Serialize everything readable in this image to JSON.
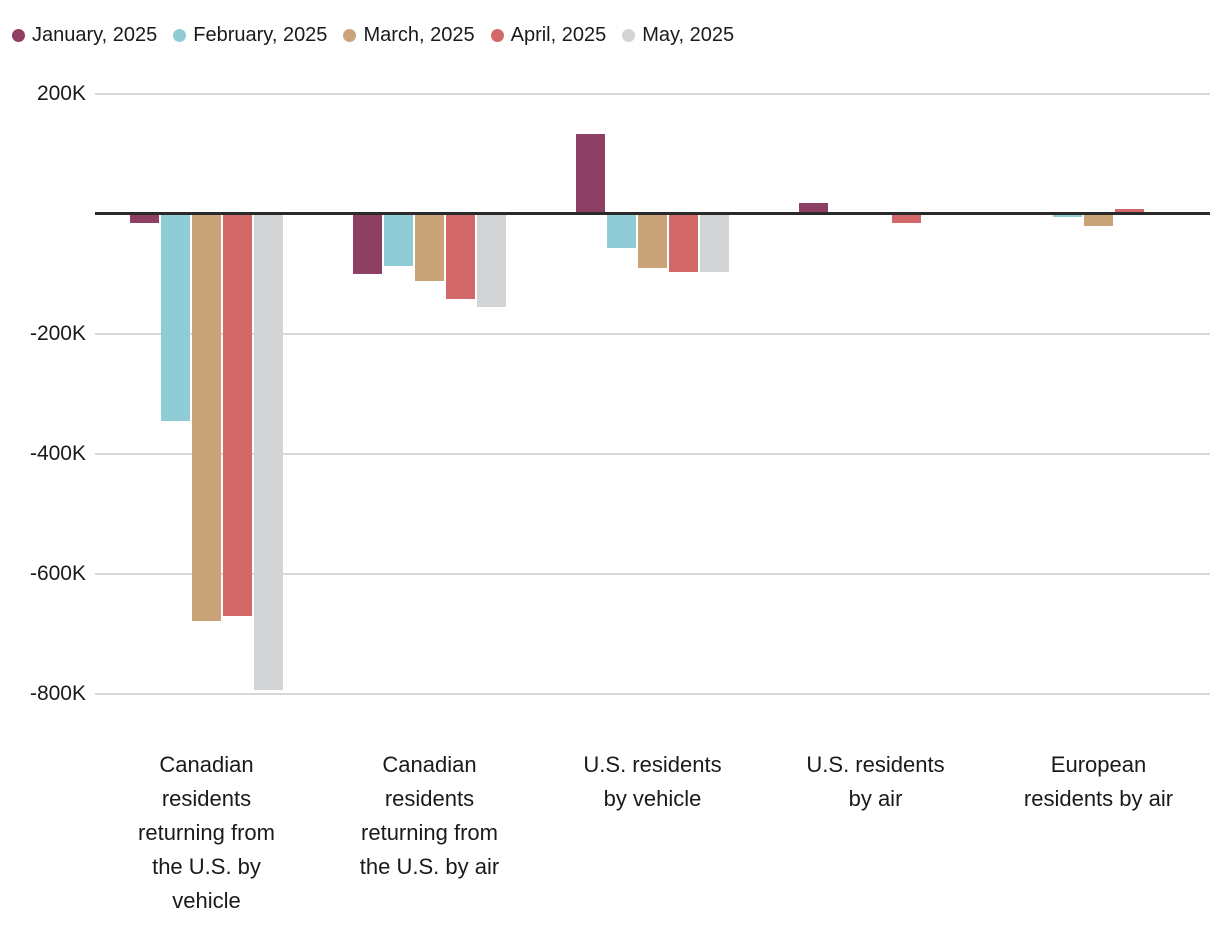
{
  "chart_data": {
    "type": "bar",
    "title": "",
    "xlabel": "",
    "ylabel": "",
    "ylim": [
      -800000,
      200000
    ],
    "grid": true,
    "legend_position": "top-left",
    "yticks": [
      {
        "label": "200K",
        "value": 200000
      },
      {
        "label": "",
        "value": 0
      },
      {
        "label": "-200K",
        "value": -200000
      },
      {
        "label": "-400K",
        "value": -400000
      },
      {
        "label": "-600K",
        "value": -600000
      },
      {
        "label": "-800K",
        "value": -800000
      }
    ],
    "categories": [
      "Canadian residents returning from the U.S. by vehicle",
      "Canadian residents returning from the U.S. by air",
      "U.S. residents by vehicle",
      "U.S. residents by air",
      "European residents by air"
    ],
    "category_line_breaks": [
      [
        "Canadian",
        "residents",
        "returning from",
        "the U.S. by",
        "vehicle"
      ],
      [
        "Canadian",
        "residents",
        "returning from",
        "the U.S. by air"
      ],
      [
        "U.S. residents",
        "by vehicle"
      ],
      [
        "U.S. residents",
        "by air"
      ],
      [
        "European",
        "residents by air"
      ]
    ],
    "series": [
      {
        "name": "January, 2025",
        "color": "#8d4064",
        "values": [
          -15000,
          -100000,
          132000,
          17000,
          0
        ]
      },
      {
        "name": "February, 2025",
        "color": "#8fccd5",
        "values": [
          -346000,
          -87000,
          -58000,
          0,
          -5000
        ]
      },
      {
        "name": "March, 2025",
        "color": "#c8a478",
        "values": [
          -679000,
          -112000,
          -90000,
          0,
          -20000
        ]
      },
      {
        "name": "April, 2025",
        "color": "#d26968",
        "values": [
          -671000,
          -143000,
          -98000,
          -15000,
          8000
        ]
      },
      {
        "name": "May, 2025",
        "color": "#d3d4d6",
        "values": [
          -794000,
          -155000,
          -97000,
          0,
          0
        ]
      }
    ],
    "colors": {
      "text": "#1a1a1a",
      "gridline": "#d8d8d8",
      "zero_line": "#2a2a2a",
      "background": "#ffffff"
    }
  }
}
